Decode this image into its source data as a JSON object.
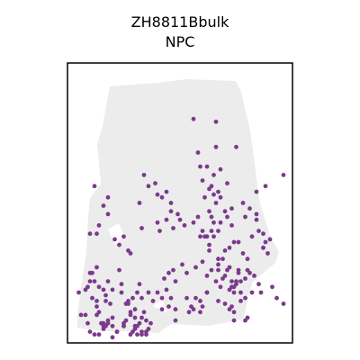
{
  "chart_data": {
    "type": "scatter",
    "title_lines": [
      "ZH8811Bbulk",
      "NPC"
    ],
    "colors": {
      "background_spots": "#ececec",
      "highlight": "#7b3a8c",
      "frame": "#000000"
    },
    "axes_visible": false,
    "grid": false,
    "legend": "none",
    "xlim": [
      0,
      100
    ],
    "ylim": [
      0,
      100
    ],
    "series": [
      {
        "role": "tissue",
        "color": "#ececec",
        "x": [],
        "y": []
      },
      {
        "role": "highlighted",
        "color": "#7b3a8c",
        "x": [
          56,
          66,
          58,
          62,
          59,
          66,
          60,
          64,
          68,
          71,
          65,
          67,
          75,
          84,
          88,
          96,
          73,
          78,
          84,
          61,
          63,
          65,
          66,
          68,
          70,
          59,
          61,
          64,
          63,
          33,
          40,
          32,
          36,
          34,
          39,
          42,
          44,
          46,
          49,
          40,
          41,
          44,
          46,
          47,
          50,
          52,
          56,
          58,
          60,
          62,
          63,
          64,
          65,
          63,
          67,
          70,
          72,
          76,
          78,
          80,
          82,
          85,
          88,
          89,
          90,
          87,
          87,
          87,
          81,
          79,
          84,
          65,
          67,
          68,
          71,
          73,
          74,
          69,
          67,
          72,
          14,
          12,
          18,
          18,
          13,
          10,
          16,
          21,
          23,
          25,
          27,
          28,
          23,
          32,
          31,
          33,
          36,
          38,
          40,
          42,
          44,
          46,
          48,
          45,
          43,
          47,
          51,
          53,
          57,
          60,
          62,
          64,
          66,
          62,
          68,
          70,
          71,
          73,
          67,
          76,
          77,
          73,
          74,
          75,
          69,
          81,
          83,
          85,
          82,
          79,
          86,
          91,
          93,
          96,
          53,
          55,
          56,
          57,
          54,
          59,
          60,
          72,
          73,
          75,
          76,
          77,
          79,
          80,
          73,
          77,
          74,
          5,
          8,
          10,
          10,
          12,
          14,
          16,
          18,
          20,
          11,
          13,
          17,
          17,
          9,
          11,
          13,
          13,
          8,
          6,
          9,
          14,
          16,
          18,
          20,
          18,
          20,
          19,
          15,
          16,
          13,
          22,
          25,
          26,
          28,
          30,
          29,
          27,
          28,
          30,
          24,
          24,
          26,
          27,
          28,
          30,
          32,
          33,
          34,
          35,
          31,
          33,
          35,
          36,
          37,
          29,
          30,
          31,
          33,
          35,
          10,
          12,
          14,
          16,
          17,
          20,
          22,
          25,
          25,
          42,
          45,
          48,
          48,
          59,
          62,
          67,
          70,
          72,
          74,
          74,
          79,
          80
        ],
        "y": [
          80,
          79,
          68,
          63,
          63,
          70,
          58,
          56,
          62,
          57,
          60,
          54,
          70,
          54,
          56,
          60,
          48,
          50,
          46,
          52,
          55,
          53,
          50,
          52,
          47,
          38,
          38,
          40,
          35,
          41,
          53,
          50,
          56,
          60,
          57,
          52,
          54,
          50,
          46,
          43,
          40,
          44,
          47,
          41,
          44,
          42,
          43,
          45,
          40,
          38,
          47,
          45,
          43,
          33,
          30,
          33,
          34,
          36,
          32,
          30,
          38,
          40,
          36,
          32,
          37,
          39,
          34,
          34,
          48,
          45,
          44,
          38,
          40,
          43,
          45,
          42,
          36,
          30,
          26,
          27,
          42,
          56,
          52,
          46,
          39,
          39,
          49,
          37,
          35,
          38,
          33,
          32,
          26,
          21,
          18,
          16,
          18,
          15,
          18,
          16,
          19,
          16,
          22,
          25,
          23,
          26,
          28,
          25,
          27,
          29,
          24,
          26,
          22,
          18,
          20,
          24,
          26,
          22,
          28,
          25,
          22,
          20,
          18,
          21,
          23,
          25,
          24,
          21,
          18,
          16,
          18,
          20,
          16,
          14,
          16,
          13,
          12,
          16,
          11,
          11,
          13,
          19,
          20,
          22,
          26,
          18,
          23,
          26,
          13,
          15,
          20,
          18,
          19,
          22,
          25,
          22,
          20,
          19,
          22,
          19,
          25,
          27,
          17,
          15,
          20,
          16,
          13,
          10,
          10,
          10,
          7,
          11,
          7,
          8,
          9,
          7,
          6,
          14,
          7,
          6,
          15,
          4,
          6,
          8,
          10,
          12,
          16,
          15,
          3,
          5,
          18,
          21,
          14,
          14,
          11,
          9,
          7,
          9,
          11,
          8,
          6,
          3,
          4,
          5,
          7,
          4,
          6,
          3,
          4,
          3,
          4,
          3,
          3,
          5,
          6,
          2,
          4,
          6,
          7,
          12,
          13,
          12,
          8,
          15,
          18,
          15,
          14,
          12,
          11,
          8,
          8,
          9
        ]
      }
    ]
  }
}
